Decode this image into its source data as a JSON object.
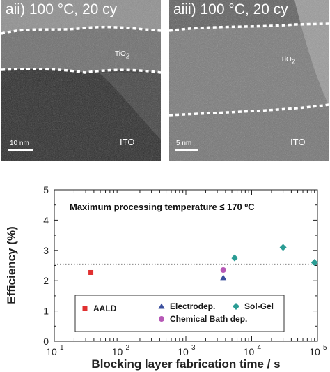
{
  "panels": [
    {
      "label": "aii)   100 °C, 20 cy",
      "film_label": "TiO",
      "film_sub": "2",
      "substrate_label": "ITO",
      "scale_label": "10 nm"
    },
    {
      "label": "aiii)  100 °C, 20 cy",
      "film_label": "TiO",
      "film_sub": "2",
      "substrate_label": "ITO",
      "scale_label": "5 nm"
    }
  ],
  "chart_data": {
    "type": "scatter",
    "title": "",
    "annotation": "Maximum processing temperature ≤ 170 ºC",
    "xlabel": "Blocking layer fabrication time / s",
    "ylabel": "Efficiency (%)",
    "xscale": "log",
    "xlim": [
      10,
      100000
    ],
    "ylim": [
      0,
      5
    ],
    "xticks": [
      {
        "value": 10,
        "base": "10",
        "exp": "1"
      },
      {
        "value": 100,
        "base": "10",
        "exp": "2"
      },
      {
        "value": 1000,
        "base": "10",
        "exp": "3"
      },
      {
        "value": 10000,
        "base": "10",
        "exp": "4"
      },
      {
        "value": 100000,
        "base": "10",
        "exp": "5"
      }
    ],
    "yticks": [
      "0",
      "1",
      "2",
      "3",
      "4",
      "5"
    ],
    "reference_line": {
      "y": 2.55,
      "style": "dotted"
    },
    "legend_placement": "bottom",
    "series": [
      {
        "name": "AALD",
        "marker": "square",
        "color": "#e03030",
        "points": [
          {
            "x": 36,
            "y": 2.27
          }
        ]
      },
      {
        "name": "Electrodep.",
        "marker": "triangle",
        "color": "#3a4f9e",
        "points": [
          {
            "x": 3700,
            "y": 2.1
          }
        ]
      },
      {
        "name": "Chemical Bath dep.",
        "marker": "circle",
        "color": "#b658b6",
        "points": [
          {
            "x": 3700,
            "y": 2.35
          }
        ]
      },
      {
        "name": "Sol-Gel",
        "marker": "diamond",
        "color": "#2a9c94",
        "points": [
          {
            "x": 5500,
            "y": 2.75
          },
          {
            "x": 30000,
            "y": 3.1
          },
          {
            "x": 90000,
            "y": 2.6
          }
        ]
      }
    ]
  }
}
